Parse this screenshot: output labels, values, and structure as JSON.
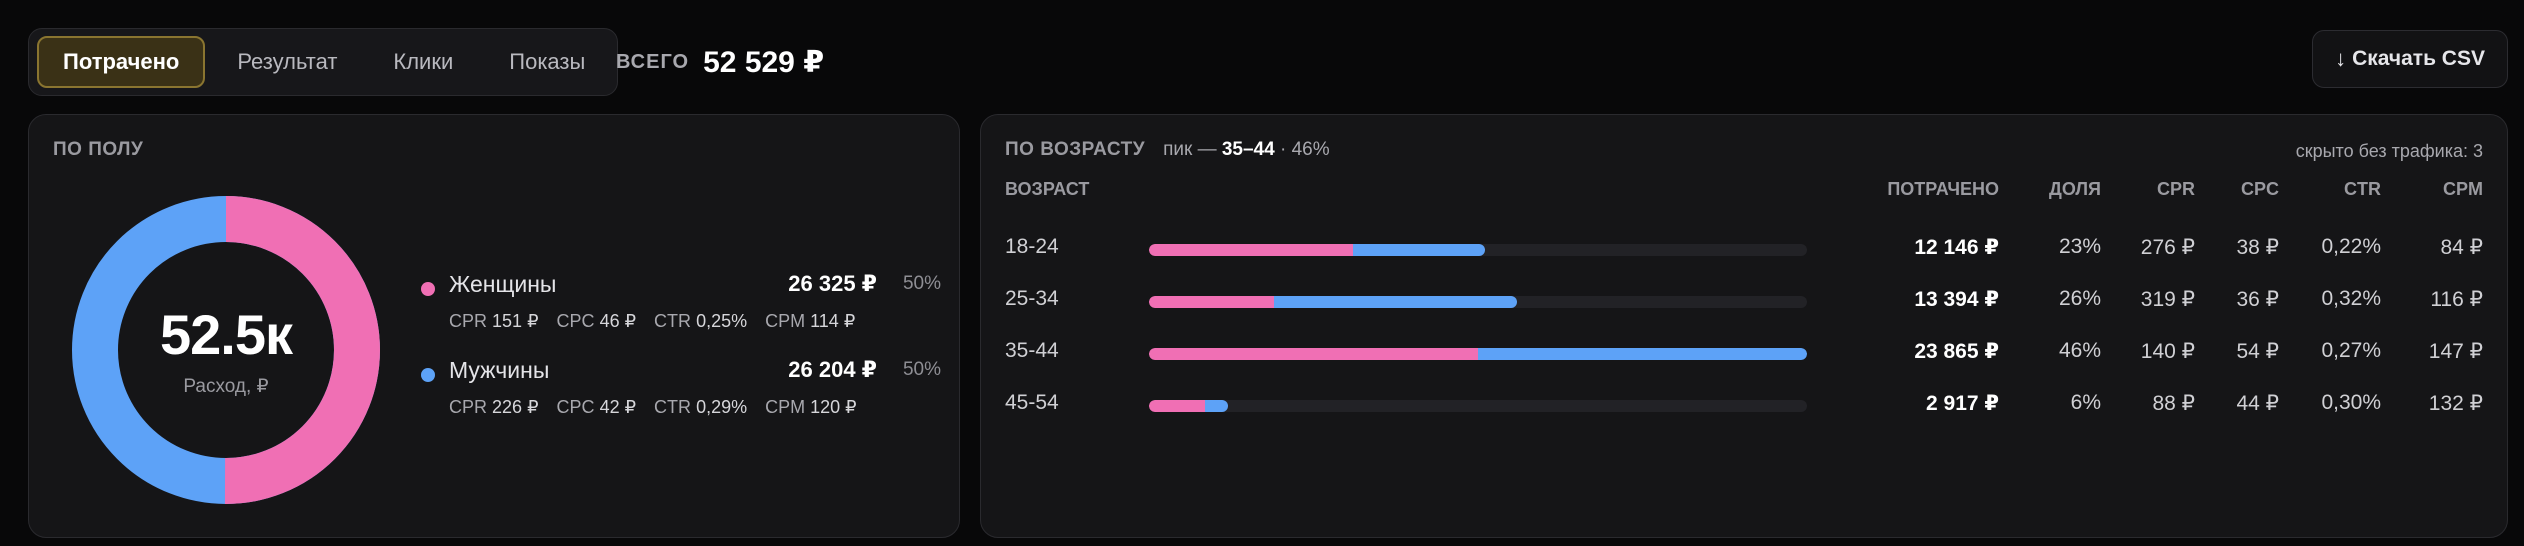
{
  "tabs": [
    {
      "label": "Потрачено",
      "active": true
    },
    {
      "label": "Результат",
      "active": false
    },
    {
      "label": "Клики",
      "active": false
    },
    {
      "label": "Показы",
      "active": false
    }
  ],
  "total": {
    "label": "ВСЕГО",
    "value": "52 529 ₽"
  },
  "csv": {
    "label": "Скачать CSV",
    "icon": "arrow-down-icon"
  },
  "colors": {
    "female": "#f06fb4",
    "male": "#5da2f7",
    "accent": "#8a7530"
  },
  "gender": {
    "title": "ПО ПОЛУ",
    "center_value": "52.5к",
    "center_label": "Расход, ₽",
    "items": [
      {
        "name": "Женщины",
        "value": "26 325 ₽",
        "share": "50%",
        "share_num": 50.1,
        "cpr_l": "CPR",
        "cpr": "151 ₽",
        "cpc_l": "CPC",
        "cpc": "46 ₽",
        "ctr_l": "CTR",
        "ctr": "0,25%",
        "cpm_l": "CPM",
        "cpm": "114 ₽"
      },
      {
        "name": "Мужчины",
        "value": "26 204 ₽",
        "share": "50%",
        "share_num": 49.9,
        "cpr_l": "CPR",
        "cpr": "226 ₽",
        "cpc_l": "CPC",
        "cpc": "42 ₽",
        "ctr_l": "CTR",
        "ctr": "0,29%",
        "cpm_l": "CPM",
        "cpm": "120 ₽"
      }
    ]
  },
  "age": {
    "title": "ПО ВОЗРАСТУ",
    "peak_prefix": "пик —",
    "peak_value": "35–44",
    "peak_suffix": "· 46%",
    "hidden_note": "скрыто без трафика: 3",
    "columns": {
      "age": "ВОЗРАСТ",
      "spent": "ПОТРАЧЕНО",
      "share": "ДОЛЯ",
      "cpr": "CPR",
      "cpc": "CPC",
      "ctr": "CTR",
      "cpm": "CPM"
    },
    "rows": [
      {
        "label": "18-24",
        "spent": "12 146 ₽",
        "share": "23%",
        "cpr": "276 ₽",
        "cpc": "38 ₽",
        "ctr": "0,22%",
        "cpm": "84 ₽",
        "bar_female": 0.31,
        "bar_male": 0.2
      },
      {
        "label": "25-34",
        "spent": "13 394 ₽",
        "share": "26%",
        "cpr": "319 ₽",
        "cpc": "36 ₽",
        "ctr": "0,32%",
        "cpm": "116 ₽",
        "bar_female": 0.19,
        "bar_male": 0.37
      },
      {
        "label": "35-44",
        "spent": "23 865 ₽",
        "share": "46%",
        "cpr": "140 ₽",
        "cpc": "54 ₽",
        "ctr": "0,27%",
        "cpm": "147 ₽",
        "bar_female": 0.5,
        "bar_male": 0.5
      },
      {
        "label": "45-54",
        "spent": "2 917 ₽",
        "share": "6%",
        "cpr": "88 ₽",
        "cpc": "44 ₽",
        "ctr": "0,30%",
        "cpm": "132 ₽",
        "bar_female": 0.085,
        "bar_male": 0.035
      }
    ]
  }
}
